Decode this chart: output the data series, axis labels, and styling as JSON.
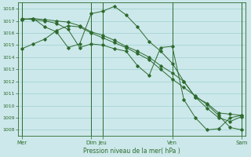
{
  "title": "Pression niveau de la mer( hPa )",
  "bg_color": "#cce8ea",
  "grid_color": "#9fcfcf",
  "line_color": "#2d6a2d",
  "ylim": [
    1007.5,
    1018.5
  ],
  "yticks": [
    1008,
    1009,
    1010,
    1011,
    1012,
    1013,
    1014,
    1015,
    1016,
    1017,
    1018
  ],
  "xtick_labels": [
    "Mer",
    "Dim",
    "Jeu",
    "Ven",
    "Sam"
  ],
  "xtick_positions": [
    0,
    6,
    7,
    13,
    19
  ],
  "vlines": [
    0,
    6,
    7,
    13,
    19
  ],
  "n_points": 20,
  "series": [
    [
      1014.7,
      1015.1,
      1015.5,
      1016.2,
      1016.6,
      1016.5,
      1016.0,
      1015.6,
      1015.2,
      1014.8,
      1014.3,
      1013.8,
      1013.0,
      1012.2,
      1011.5,
      1010.8,
      1010.1,
      1009.2,
      1008.2,
      1008.0
    ],
    [
      1017.1,
      1017.2,
      1017.1,
      1017.0,
      1016.9,
      1016.6,
      1016.1,
      1015.8,
      1015.4,
      1014.9,
      1014.5,
      1014.0,
      1013.3,
      1012.7,
      1012.0,
      1010.7,
      1009.8,
      1009.0,
      1008.7,
      1009.1
    ],
    [
      1017.2,
      1017.1,
      1017.0,
      1016.8,
      1016.3,
      1014.8,
      1015.1,
      1015.0,
      1014.7,
      1014.5,
      1013.3,
      1012.5,
      1014.8,
      1014.9,
      1010.5,
      1009.0,
      1008.0,
      1008.1,
      1009.0,
      1009.2
    ],
    [
      1017.1,
      1017.2,
      1016.5,
      1016.1,
      1014.8,
      1015.1,
      1017.6,
      1017.8,
      1018.2,
      1017.5,
      1016.5,
      1015.3,
      1014.5,
      1013.5,
      1012.0,
      1010.7,
      1010.2,
      1009.4,
      1009.3,
      1009.2
    ]
  ]
}
